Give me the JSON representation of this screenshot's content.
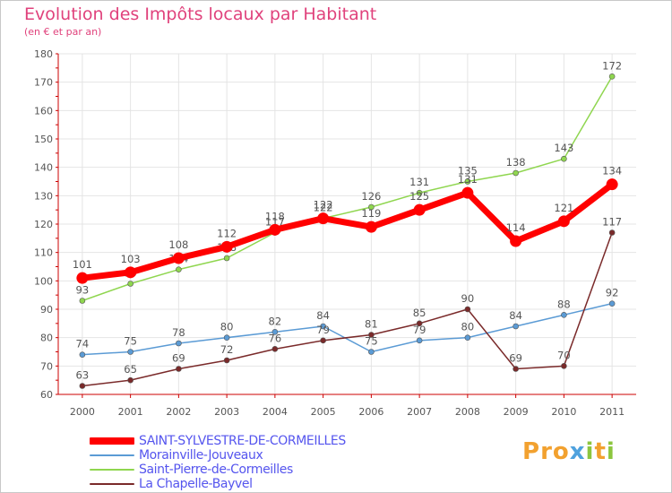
{
  "title": "Evolution des Impôts locaux par Habitant",
  "subtitle": "(en € et par an)",
  "logo": "Proxiti",
  "chart_data": {
    "type": "line",
    "title": "Evolution des Impôts locaux par Habitant",
    "subtitle": "(en € et par an)",
    "xlabel": "",
    "ylabel": "",
    "ylim": [
      60,
      180
    ],
    "yticks": [
      60,
      70,
      80,
      90,
      100,
      110,
      120,
      130,
      140,
      150,
      160,
      170,
      180
    ],
    "grid": true,
    "legend_position": "bottom-left",
    "x": [
      "2000",
      "2001",
      "2002",
      "2003",
      "2004",
      "2005",
      "2006",
      "2007",
      "2008",
      "2009",
      "2010",
      "2011"
    ],
    "series": [
      {
        "name": "SAINT-SYLVESTRE-DE-CORMEILLES",
        "color": "#ff0000",
        "values": [
          101,
          103,
          108,
          112,
          118,
          122,
          119,
          125,
          131,
          114,
          121,
          134
        ]
      },
      {
        "name": "Morainville-Jouveaux",
        "color": "#5b9bd5",
        "values": [
          74,
          75,
          78,
          80,
          82,
          84,
          75,
          79,
          80,
          84,
          88,
          92
        ]
      },
      {
        "name": "Saint-Pierre-de-Cormeilles",
        "color": "#8fd64f",
        "values": [
          93,
          99,
          104,
          108,
          117,
          122,
          126,
          131,
          135,
          138,
          143,
          172
        ]
      },
      {
        "name": "La Chapelle-Bayvel",
        "color": "#7a2a2a",
        "values": [
          63,
          65,
          69,
          72,
          76,
          79,
          81,
          85,
          90,
          69,
          70,
          117
        ]
      }
    ]
  }
}
